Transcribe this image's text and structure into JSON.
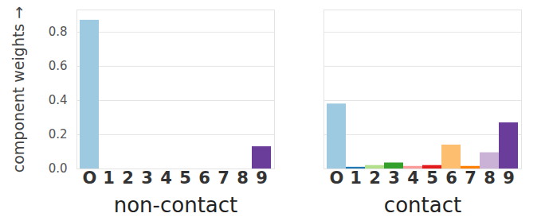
{
  "chart_data": {
    "type": "bar",
    "y_label": "component weights",
    "categories": [
      "O",
      "1",
      "2",
      "3",
      "4",
      "5",
      "6",
      "7",
      "8",
      "9"
    ],
    "colors": [
      "#9ecae1",
      "#1f78b4",
      "#b2df8a",
      "#33a02c",
      "#fb9a99",
      "#e31a1c",
      "#fdbf6f",
      "#ff7f00",
      "#cab2d6",
      "#6a3d9a"
    ],
    "series": [
      {
        "name": "non-contact",
        "values": [
          0.87,
          0,
          0,
          0,
          0,
          0,
          0,
          0,
          0,
          0.13
        ]
      },
      {
        "name": "contact",
        "values": [
          0.38,
          0.01,
          0.02,
          0.035,
          0.015,
          0.02,
          0.14,
          0.015,
          0.095,
          0.27
        ]
      }
    ],
    "ylim": [
      0,
      0.93
    ],
    "yticks": [
      0,
      0.2,
      0.4,
      0.6,
      0.8
    ],
    "grid": true
  }
}
